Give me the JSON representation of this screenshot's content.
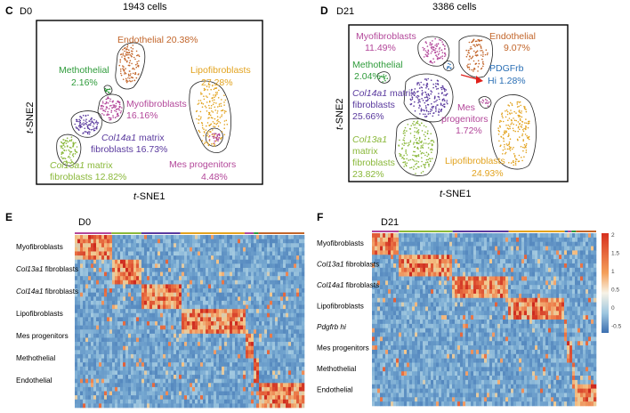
{
  "panels": {
    "C": {
      "letter": "C",
      "day": "D0",
      "count": "1943 cells",
      "xlabel_t": "t",
      "xlabel_rest": "-SNE1",
      "ylabel_t": "t",
      "ylabel_rest": "-SNE2",
      "clusters": [
        {
          "name": "Endothelial",
          "pct": "20.38%",
          "color": "#c2652a"
        },
        {
          "name": "Methothelial",
          "pct": "2.16%",
          "color": "#2e9b3a"
        },
        {
          "name": "Lipofibroblasts",
          "pct": "27.28%",
          "color": "#e2a31f"
        },
        {
          "name": "Myofibroblasts",
          "pct": "16.16%",
          "color": "#b3479a"
        },
        {
          "name_italic": "Col14a1",
          "name_rest": " matrix",
          "name2": "fibroblasts",
          "pct": "16.73%",
          "color": "#5a3a9e"
        },
        {
          "name_italic": "Col13a1",
          "name_rest": " matrix",
          "name2": "fibroblasts",
          "pct": "12.82%",
          "color": "#8ab83a"
        },
        {
          "name": "Mes progenitors",
          "pct": "4.48%",
          "color": "#b3479a"
        }
      ]
    },
    "D": {
      "letter": "D",
      "day": "D21",
      "count": "3386 cells",
      "xlabel_t": "t",
      "xlabel_rest": "-SNE1",
      "ylabel_t": "t",
      "ylabel_rest": "-SNE2",
      "clusters": [
        {
          "name": "Myofibroblasts",
          "pct": "11.49%",
          "color": "#b3479a"
        },
        {
          "name": "Endothelial",
          "pct": "9.07%",
          "color": "#c2652a"
        },
        {
          "name": "Methothelial",
          "pct": "2.04%",
          "color": "#2e9b3a"
        },
        {
          "name": "PDGFrb",
          "name2": "Hi",
          "pct": "1.28%",
          "color": "#2a6fb5"
        },
        {
          "name_italic": "Col14a1",
          "name_rest": " matrix",
          "name2": "fibroblasts",
          "pct": "25.66%",
          "color": "#5a3a9e"
        },
        {
          "name": "Mes",
          "name2": "progenitors",
          "pct": "1.72%",
          "color": "#b3479a"
        },
        {
          "name_italic": "Col13a1",
          "name2": "matrix",
          "name3": "fibroblasts",
          "pct": "23.82%",
          "color": "#8ab83a"
        },
        {
          "name": "Lipofibroblasts",
          "pct": "24.93%",
          "color": "#e2a31f"
        }
      ]
    },
    "E": {
      "letter": "E",
      "day": "D0",
      "rows": [
        {
          "label": "Myofibroblasts"
        },
        {
          "label_italic": "Col13a1",
          "label_rest": " fibroblasts"
        },
        {
          "label_italic": "Col14a1",
          "label_rest": " fibroblasts"
        },
        {
          "label": "Lipofibroblasts"
        },
        {
          "label": "Mes progenitors"
        },
        {
          "label": "Methothelial"
        },
        {
          "label": "Endothelial"
        }
      ]
    },
    "F": {
      "letter": "F",
      "day": "D21",
      "rows": [
        {
          "label": "Myofibroblasts"
        },
        {
          "label_italic": "Col13a1",
          "label_rest": " fibroblasts"
        },
        {
          "label_italic": "Col14a1",
          "label_rest": " fibroblasts"
        },
        {
          "label": "Lipofibroblasts"
        },
        {
          "label_italic": "Pdgfrb hi",
          "label_rest": ""
        },
        {
          "label": "Mes progenitors"
        },
        {
          "label": "Methothelial"
        },
        {
          "label": "Endothelial"
        }
      ],
      "scale": [
        "2",
        "1.5",
        "1",
        "0.5",
        "0",
        "-0.5"
      ]
    }
  },
  "colors": {
    "heat_low": "#3b6fb0",
    "heat_mid": "#9fc7e0",
    "heat_high": "#d7301f",
    "heat_warm": "#f4a05a",
    "arrow": "#e0201b"
  }
}
